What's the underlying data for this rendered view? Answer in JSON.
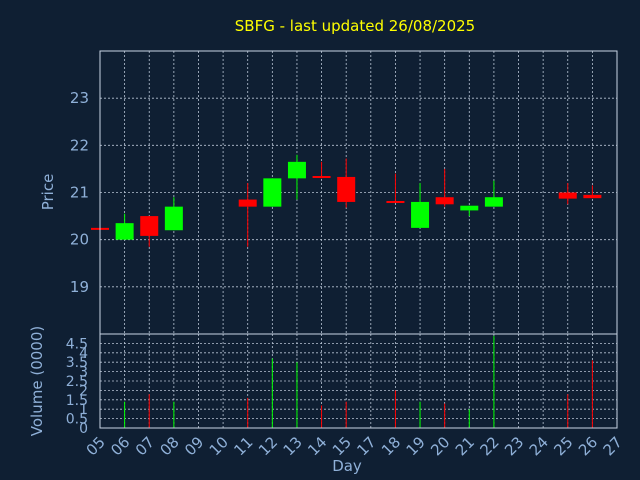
{
  "chart_data": {
    "type": "candlestick",
    "title": "SBFG - last updated 26/08/2025",
    "xlabel": "Day",
    "ylabel_price": "Price",
    "ylabel_volume": "Volume (0000)",
    "x_ticks": [
      "05",
      "06",
      "07",
      "08",
      "09",
      "10",
      "11",
      "12",
      "13",
      "14",
      "15",
      "17",
      "18",
      "19",
      "20",
      "21",
      "22",
      "23",
      "24",
      "25",
      "26",
      "27"
    ],
    "price_ticks": [
      19,
      20,
      21,
      22,
      23
    ],
    "price_range": [
      18.0,
      24.0
    ],
    "volume_ticks": [
      "0",
      "0.5",
      "1",
      "1.5",
      "2",
      "2.5",
      "3",
      "3.5",
      "4",
      "4.5"
    ],
    "volume_range": [
      0,
      5
    ],
    "up_color": "#00ff00",
    "down_color": "#ff0000",
    "candles": [
      {
        "day": "05",
        "open": 20.25,
        "close": 20.25,
        "high": 20.25,
        "low": 20.25,
        "volume": 0,
        "dir": "down"
      },
      {
        "day": "06",
        "open": 20.0,
        "close": 20.35,
        "high": 20.55,
        "low": 20.0,
        "volume": 1.4,
        "dir": "up"
      },
      {
        "day": "07",
        "open": 20.5,
        "close": 20.08,
        "high": 20.5,
        "low": 19.85,
        "volume": 1.8,
        "dir": "down"
      },
      {
        "day": "08",
        "open": 20.2,
        "close": 20.7,
        "high": 20.9,
        "low": 20.2,
        "volume": 1.4,
        "dir": "up"
      },
      {
        "day": "11",
        "open": 20.85,
        "close": 20.7,
        "high": 21.2,
        "low": 19.85,
        "volume": 1.6,
        "dir": "down"
      },
      {
        "day": "12",
        "open": 20.7,
        "close": 21.3,
        "high": 21.3,
        "low": 20.7,
        "volume": 3.7,
        "dir": "up"
      },
      {
        "day": "13",
        "open": 21.3,
        "close": 21.65,
        "high": 21.8,
        "low": 20.85,
        "volume": 3.5,
        "dir": "up"
      },
      {
        "day": "14",
        "open": 21.35,
        "close": 21.33,
        "high": 21.65,
        "low": 21.3,
        "volume": 1.2,
        "dir": "down"
      },
      {
        "day": "15",
        "open": 21.33,
        "close": 20.8,
        "high": 21.72,
        "low": 20.68,
        "volume": 1.4,
        "dir": "down"
      },
      {
        "day": "18",
        "open": 20.82,
        "close": 20.78,
        "high": 21.4,
        "low": 20.78,
        "volume": 2.0,
        "dir": "down"
      },
      {
        "day": "19",
        "open": 20.25,
        "close": 20.8,
        "high": 21.2,
        "low": 20.25,
        "volume": 1.4,
        "dir": "up"
      },
      {
        "day": "20",
        "open": 20.9,
        "close": 20.75,
        "high": 21.5,
        "low": 20.7,
        "volume": 1.3,
        "dir": "down"
      },
      {
        "day": "21",
        "open": 20.62,
        "close": 20.72,
        "high": 20.72,
        "low": 20.5,
        "volume": 1.0,
        "dir": "up"
      },
      {
        "day": "22",
        "open": 20.7,
        "close": 20.9,
        "high": 21.25,
        "low": 20.7,
        "volume": 4.9,
        "dir": "up"
      },
      {
        "day": "25",
        "open": 21.0,
        "close": 20.87,
        "high": 21.2,
        "low": 20.75,
        "volume": 1.8,
        "dir": "down"
      },
      {
        "day": "26",
        "open": 20.95,
        "close": 20.88,
        "high": 21.15,
        "low": 20.88,
        "volume": 3.6,
        "dir": "down"
      }
    ]
  }
}
